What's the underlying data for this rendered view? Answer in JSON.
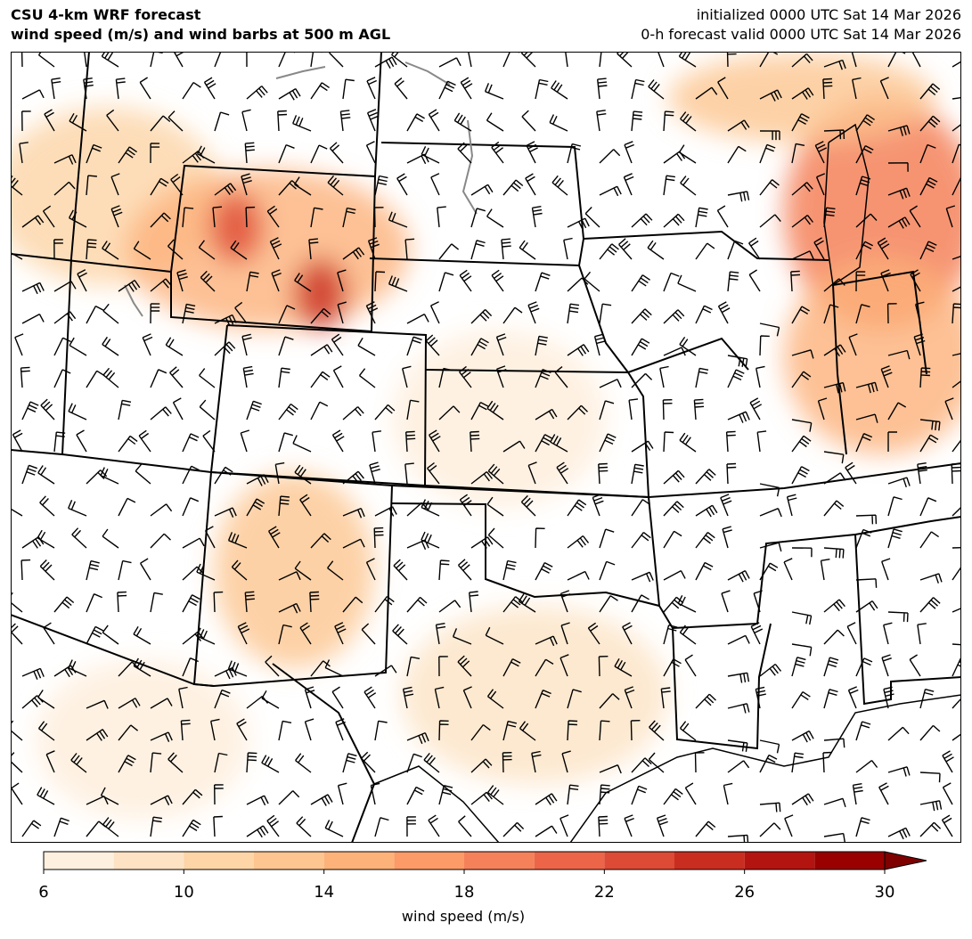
{
  "header": {
    "left": [
      "CSU 4-km WRF forecast",
      "wind speed (m/s) and wind barbs at 500 m AGL"
    ],
    "right": [
      "initialized 0000 UTC Sat 14 Mar 2026",
      "0-h forecast valid 0000 UTC Sat 14 Mar 2026"
    ]
  },
  "colorbar": {
    "label": "wind speed (m/s)",
    "levels": [
      6,
      8,
      10,
      12,
      14,
      16,
      18,
      20,
      22,
      24,
      26,
      28,
      30
    ],
    "colors": [
      "#fef0df",
      "#fde3c4",
      "#fdd5a6",
      "#fdc590",
      "#fdb27a",
      "#fc9b67",
      "#f5815a",
      "#ec6548",
      "#dd4a35",
      "#c92d20",
      "#b41410",
      "#990000"
    ],
    "extend_color": "#7f0000",
    "ticks": [
      6,
      10,
      14,
      18,
      22,
      26,
      30
    ]
  }
}
